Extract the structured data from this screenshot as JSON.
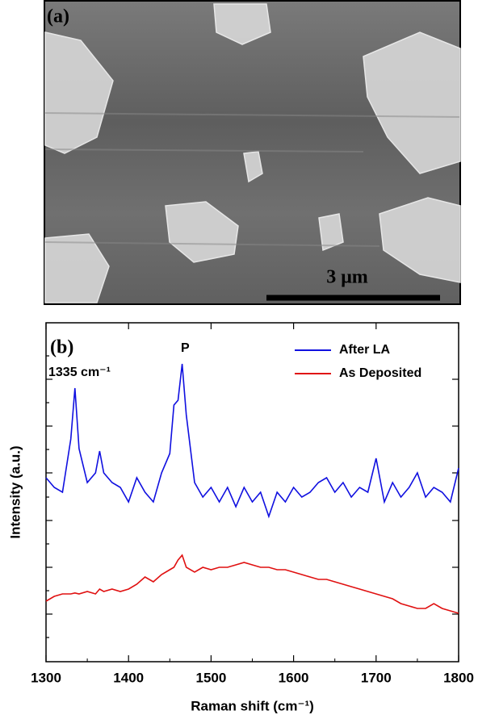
{
  "panel_a": {
    "label": "(a)",
    "scale_bar": "3 μm"
  },
  "chart_data": {
    "type": "line",
    "panel_label": "(b)",
    "annotations": [
      "P",
      "1335 cm⁻¹"
    ],
    "x_label": "Raman shift (cm⁻¹)",
    "y_label": "Intensity (a.u.)",
    "x": [
      1300,
      1310,
      1320,
      1330,
      1335,
      1340,
      1350,
      1360,
      1365,
      1370,
      1380,
      1390,
      1400,
      1410,
      1420,
      1430,
      1440,
      1450,
      1455,
      1460,
      1465,
      1470,
      1480,
      1490,
      1500,
      1510,
      1520,
      1530,
      1540,
      1550,
      1560,
      1570,
      1580,
      1590,
      1600,
      1610,
      1620,
      1630,
      1640,
      1650,
      1660,
      1670,
      1680,
      1690,
      1700,
      1710,
      1720,
      1730,
      1740,
      1750,
      1760,
      1770,
      1780,
      1790,
      1800
    ],
    "series": [
      {
        "name": "After LA",
        "color": "#1010e0",
        "values": [
          3.8,
          3.6,
          3.5,
          4.6,
          5.65,
          4.4,
          3.7,
          3.9,
          4.35,
          3.9,
          3.7,
          3.6,
          3.3,
          3.8,
          3.5,
          3.3,
          3.9,
          4.3,
          5.3,
          5.4,
          6.15,
          5.1,
          3.7,
          3.4,
          3.6,
          3.3,
          3.6,
          3.2,
          3.6,
          3.3,
          3.5,
          3.0,
          3.5,
          3.3,
          3.6,
          3.4,
          3.5,
          3.7,
          3.8,
          3.5,
          3.7,
          3.4,
          3.6,
          3.5,
          4.2,
          3.3,
          3.7,
          3.4,
          3.6,
          3.9,
          3.4,
          3.6,
          3.5,
          3.3,
          4.0
        ]
      },
      {
        "name": "As Deposited",
        "color": "#e01010",
        "values": [
          1.25,
          1.35,
          1.4,
          1.4,
          1.42,
          1.4,
          1.45,
          1.4,
          1.5,
          1.45,
          1.5,
          1.45,
          1.5,
          1.6,
          1.75,
          1.65,
          1.8,
          1.9,
          1.95,
          2.1,
          2.2,
          1.95,
          1.85,
          1.95,
          1.9,
          1.95,
          1.95,
          2.0,
          2.05,
          2.0,
          1.95,
          1.95,
          1.9,
          1.9,
          1.85,
          1.8,
          1.75,
          1.7,
          1.7,
          1.65,
          1.6,
          1.55,
          1.5,
          1.45,
          1.4,
          1.35,
          1.3,
          1.2,
          1.15,
          1.1,
          1.1,
          1.2,
          1.1,
          1.05,
          1.0
        ]
      }
    ],
    "xlim": [
      1300,
      1800
    ],
    "xticks": [
      1300,
      1400,
      1500,
      1600,
      1700,
      1800
    ],
    "ylim": [
      0,
      7
    ],
    "legend": "upper right"
  }
}
